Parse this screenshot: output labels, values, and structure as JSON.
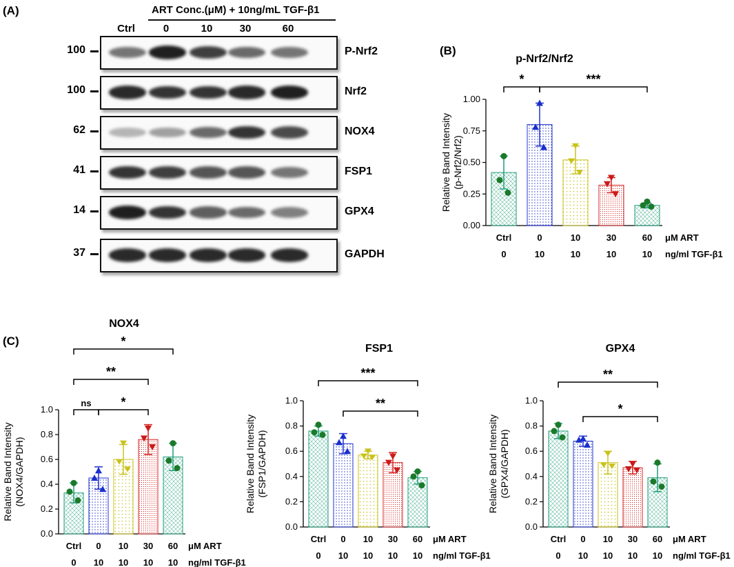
{
  "panels": {
    "a_label": "(A)",
    "b_label": "(B)",
    "c_label": "(C)"
  },
  "blot": {
    "header": "ART Conc.(μM) + 10ng/mL TGF-β1",
    "lanes": [
      "Ctrl",
      "0",
      "10",
      "30",
      "60"
    ],
    "rows": [
      {
        "protein": "P-Nrf2",
        "mw": "100",
        "intensity": [
          0.55,
          0.95,
          0.8,
          0.6,
          0.55
        ]
      },
      {
        "protein": "Nrf2",
        "mw": "100",
        "intensity": [
          0.9,
          0.85,
          0.85,
          0.9,
          0.95
        ]
      },
      {
        "protein": "NOX4",
        "mw": "62",
        "intensity": [
          0.25,
          0.35,
          0.6,
          0.85,
          0.75
        ]
      },
      {
        "protein": "FSP1",
        "mw": "41",
        "intensity": [
          0.85,
          0.8,
          0.7,
          0.7,
          0.55
        ]
      },
      {
        "protein": "GPX4",
        "mw": "14",
        "intensity": [
          0.95,
          0.85,
          0.65,
          0.6,
          0.5
        ]
      },
      {
        "protein": "GAPDH",
        "mw": "37",
        "intensity": [
          0.9,
          0.9,
          0.9,
          0.9,
          0.9
        ]
      }
    ]
  },
  "colors": {
    "ctrl": "#1f9e7a",
    "zero": "#2233cc",
    "ten": "#c9c21a",
    "thirty": "#d62020",
    "sixty": "#1f9e7a",
    "dots": [
      "#1a7a2a",
      "#1a2fcc",
      "#c9c21a",
      "#cc1a1a",
      "#1a7a2a"
    ]
  },
  "chart_data": [
    {
      "type": "bar",
      "title": "p-Nrf2/Nrf2",
      "ylabel_line1": "Relative Band Intensity",
      "ylabel_line2": "(p-Nrf2/Nrf2)",
      "categories": [
        "Ctrl",
        "0",
        "10",
        "30",
        "60"
      ],
      "row_label_1": "μM ART",
      "tgf_values": [
        "0",
        "10",
        "10",
        "10",
        "10"
      ],
      "row_label_2": "ng/ml TGF-β1",
      "ylim": [
        0,
        1.0
      ],
      "yticks": [
        "0.00",
        "0.25",
        "0.50",
        "0.75",
        "1.00"
      ],
      "values": [
        0.42,
        0.8,
        0.52,
        0.32,
        0.16
      ],
      "errors": [
        0.13,
        0.17,
        0.11,
        0.06,
        0.02
      ],
      "points": [
        [
          0.55,
          0.36,
          0.26
        ],
        [
          0.97,
          0.78,
          0.62
        ],
        [
          0.63,
          0.51,
          0.42
        ],
        [
          0.38,
          0.33,
          0.25
        ],
        [
          0.19,
          0.16,
          0.15
        ]
      ],
      "brackets": [
        {
          "from": 0,
          "to": 1,
          "label": "*",
          "level": 1
        },
        {
          "from": 1,
          "to": 4,
          "label": "***",
          "level": 1
        }
      ]
    },
    {
      "type": "bar",
      "title": "NOX4",
      "ylabel_line1": "Relative Band Intensity",
      "ylabel_line2": "(NOX4/GAPDH)",
      "categories": [
        "Ctrl",
        "0",
        "10",
        "30",
        "60"
      ],
      "row_label_1": "μM ART",
      "tgf_values": [
        "0",
        "10",
        "10",
        "10",
        "10"
      ],
      "row_label_2": "ng/ml TGF-β1",
      "ylim": [
        0,
        1.0
      ],
      "yticks": [
        "0.0",
        "0.2",
        "0.4",
        "0.6",
        "0.8",
        "1.0"
      ],
      "values": [
        0.33,
        0.45,
        0.6,
        0.76,
        0.62
      ],
      "errors": [
        0.08,
        0.09,
        0.12,
        0.12,
        0.11
      ],
      "points": [
        [
          0.41,
          0.34,
          0.27
        ],
        [
          0.51,
          0.45,
          0.36
        ],
        [
          0.73,
          0.58,
          0.52
        ],
        [
          0.85,
          0.77,
          0.7
        ],
        [
          0.73,
          0.59,
          0.53
        ]
      ],
      "brackets": [
        {
          "from": 0,
          "to": 1,
          "label": "ns",
          "level": 1
        },
        {
          "from": 1,
          "to": 3,
          "label": "*",
          "level": 1
        },
        {
          "from": 0,
          "to": 3,
          "label": "**",
          "level": 2
        },
        {
          "from": 0,
          "to": 4,
          "label": "*",
          "level": 3
        }
      ]
    },
    {
      "type": "bar",
      "title": "FSP1",
      "ylabel_line1": "Relative Band Intensity",
      "ylabel_line2": "(FSP1/GAPDH)",
      "categories": [
        "Ctrl",
        "0",
        "10",
        "30",
        "60"
      ],
      "row_label_1": "μM ART",
      "tgf_values": [
        "0",
        "10",
        "10",
        "10",
        "10"
      ],
      "row_label_2": "ng/ml TGF-β1",
      "ylim": [
        0,
        1.0
      ],
      "yticks": [
        "0.0",
        "0.2",
        "0.4",
        "0.6",
        "0.8",
        "1.0"
      ],
      "values": [
        0.76,
        0.66,
        0.57,
        0.51,
        0.39
      ],
      "errors": [
        0.04,
        0.08,
        0.03,
        0.08,
        0.05
      ],
      "points": [
        [
          0.81,
          0.75,
          0.73
        ],
        [
          0.72,
          0.67,
          0.6
        ],
        [
          0.6,
          0.56,
          0.55
        ],
        [
          0.56,
          0.51,
          0.45
        ],
        [
          0.44,
          0.4,
          0.33
        ]
      ],
      "brackets": [
        {
          "from": 1,
          "to": 4,
          "label": "**",
          "level": 1
        },
        {
          "from": 0,
          "to": 4,
          "label": "***",
          "level": 2
        }
      ]
    },
    {
      "type": "bar",
      "title": "GPX4",
      "ylabel_line1": "Relative Band Intensity",
      "ylabel_line2": "(GPX4/GAPDH)",
      "categories": [
        "Ctrl",
        "0",
        "10",
        "30",
        "60"
      ],
      "row_label_1": "μM ART",
      "tgf_values": [
        "0",
        "10",
        "10",
        "10",
        "10"
      ],
      "row_label_2": "ng/ml TGF-β1",
      "ylim": [
        0,
        1.0
      ],
      "yticks": [
        "0.0",
        "0.2",
        "0.4",
        "0.6",
        "0.8",
        "1.0"
      ],
      "values": [
        0.76,
        0.68,
        0.51,
        0.47,
        0.39
      ],
      "errors": [
        0.06,
        0.04,
        0.09,
        0.05,
        0.11
      ],
      "points": [
        [
          0.81,
          0.76,
          0.71
        ],
        [
          0.7,
          0.69,
          0.65
        ],
        [
          0.58,
          0.49,
          0.48
        ],
        [
          0.5,
          0.46,
          0.45
        ],
        [
          0.51,
          0.36,
          0.32
        ]
      ],
      "brackets": [
        {
          "from": 1,
          "to": 4,
          "label": "*",
          "level": 1
        },
        {
          "from": 0,
          "to": 4,
          "label": "**",
          "level": 2
        }
      ]
    }
  ]
}
